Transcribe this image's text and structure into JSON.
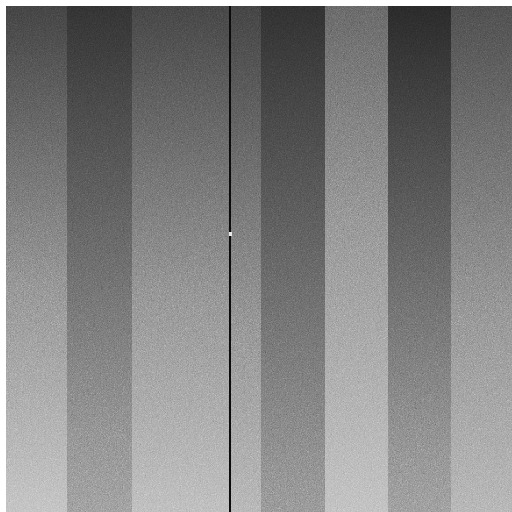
{
  "image": {
    "description_tag": "noisy-grayscale-vertical-bands",
    "bands": [
      {
        "name": "band-1",
        "top_color": "#3a3a3a",
        "bottom_color": "#b8b8b8"
      },
      {
        "name": "band-2",
        "top_color": "#2c2c2c",
        "bottom_color": "#8e8e8e"
      },
      {
        "name": "band-3",
        "top_color": "#3c3c3c",
        "bottom_color": "#b2b2b2"
      },
      {
        "name": "band-4",
        "top_color": "#3a3a3a",
        "bottom_color": "#a9a9a9"
      },
      {
        "name": "band-5",
        "top_color": "#2a2a2a",
        "bottom_color": "#858585"
      },
      {
        "name": "band-6",
        "top_color": "#5a5a5a",
        "bottom_color": "#b6b6b6"
      },
      {
        "name": "band-7",
        "top_color": "#242424",
        "bottom_color": "#8c8c8c"
      },
      {
        "name": "band-8",
        "top_color": "#444444",
        "bottom_color": "#a8a8a8"
      }
    ],
    "line_color": "#0c0c0c",
    "hot_pixel_color": "#e8e8e8"
  }
}
